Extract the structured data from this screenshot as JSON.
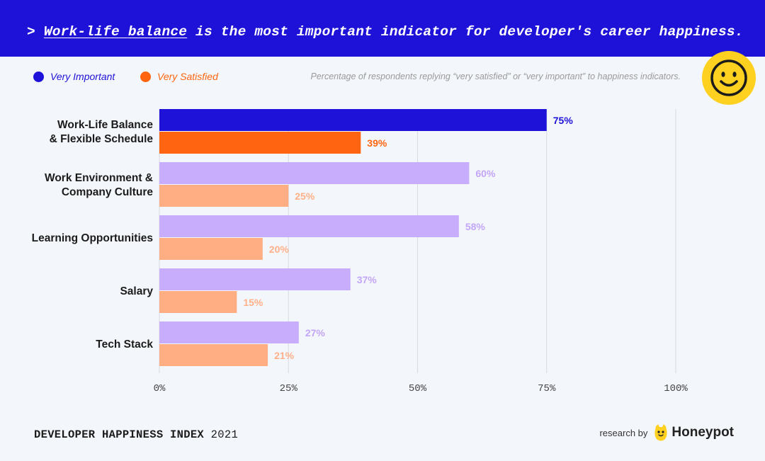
{
  "header": {
    "prefix": ">",
    "highlight": "Work-life balance",
    "rest": " is the most important indicator for developer's career happiness."
  },
  "legend": {
    "important_label": "Very Important",
    "satisfied_label": "Very Satisfied",
    "note": "Percentage of respondents replying “very satisfied” or “very important” to happiness indicators."
  },
  "colors": {
    "banner": "#1f12d8",
    "important": "#1f12d8",
    "satisfied": "#ff6510",
    "important_light": "#c9adfd",
    "satisfied_light": "#ffae84",
    "important_label_light": "#c3a6f7",
    "satisfied_label_light": "#ffb08a",
    "grid": "#d8dbe2"
  },
  "chart_data": {
    "type": "bar",
    "orientation": "horizontal",
    "categories": [
      [
        "Work-Life Balance",
        "& Flexible Schedule"
      ],
      [
        "Work Environment &",
        "Company Culture"
      ],
      [
        "Learning Opportunities"
      ],
      [
        "Salary"
      ],
      [
        "Tech Stack"
      ]
    ],
    "series": [
      {
        "name": "Very Important",
        "values": [
          75,
          60,
          58,
          37,
          27
        ]
      },
      {
        "name": "Very Satisfied",
        "values": [
          39,
          25,
          20,
          15,
          21
        ]
      }
    ],
    "value_labels": {
      "important": [
        "75%",
        "60%",
        "58%",
        "37%",
        "27%"
      ],
      "satisfied": [
        "39%",
        "25%",
        "20%",
        "15%",
        "21%"
      ]
    },
    "highlight_index": 0,
    "xlim": [
      0,
      100
    ],
    "xticks": [
      "0%",
      "25%",
      "50%",
      "75%",
      "100%"
    ],
    "grid": true
  },
  "footer": {
    "index_label": "DEVELOPER HAPPINESS INDEX",
    "year": "2021",
    "research_by": "research by",
    "brand": "Honeypot"
  }
}
